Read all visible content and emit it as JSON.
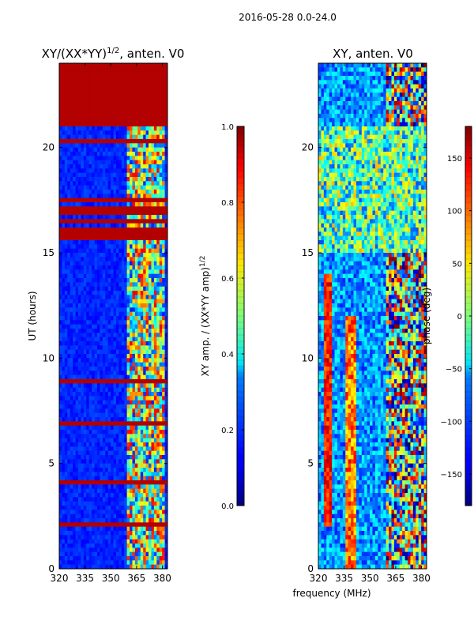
{
  "figure_title": "2016-05-28 0.0-24.0",
  "x_axis_label": "frequency (MHz)",
  "chart_data": [
    {
      "type": "heatmap",
      "title": "XY/(XX*YY)^{1/2}, anten. V0",
      "title_text": "XY/(XX*YY)",
      "title_sup": "1/2",
      "title_tail": ", anten. V0",
      "xlabel": "frequency (MHz)",
      "ylabel": "UT (hours)",
      "xlim": [
        320,
        383
      ],
      "ylim": [
        0,
        24
      ],
      "xticks": [
        "320",
        "335",
        "350",
        "365",
        "380"
      ],
      "yticks": [
        "0",
        "5",
        "10",
        "15",
        "20"
      ],
      "colorbar": {
        "label": "XY amp. / (XX*YY amp)^{1/2}",
        "label_text": "XY amp. / (XX*YY amp)",
        "label_sup": "1/2",
        "range": [
          0.0,
          1.0
        ],
        "ticks": [
          "0.0",
          "0.2",
          "0.4",
          "0.6",
          "0.8",
          "1.0"
        ],
        "colormap": "jet"
      }
    },
    {
      "type": "heatmap",
      "title": "XY, anten. V0",
      "xlabel": "frequency (MHz)",
      "ylabel": "",
      "xlim": [
        320,
        383
      ],
      "ylim": [
        0,
        24
      ],
      "xticks": [
        "320",
        "335",
        "350",
        "365",
        "380"
      ],
      "yticks": [
        "0",
        "5",
        "10",
        "15",
        "20"
      ],
      "colorbar": {
        "label": "phase (deg)",
        "range": [
          -180,
          180
        ],
        "ticks": [
          "−150",
          "−100",
          "−50",
          "0",
          "50",
          "100",
          "150"
        ],
        "colormap": "jet"
      }
    }
  ]
}
